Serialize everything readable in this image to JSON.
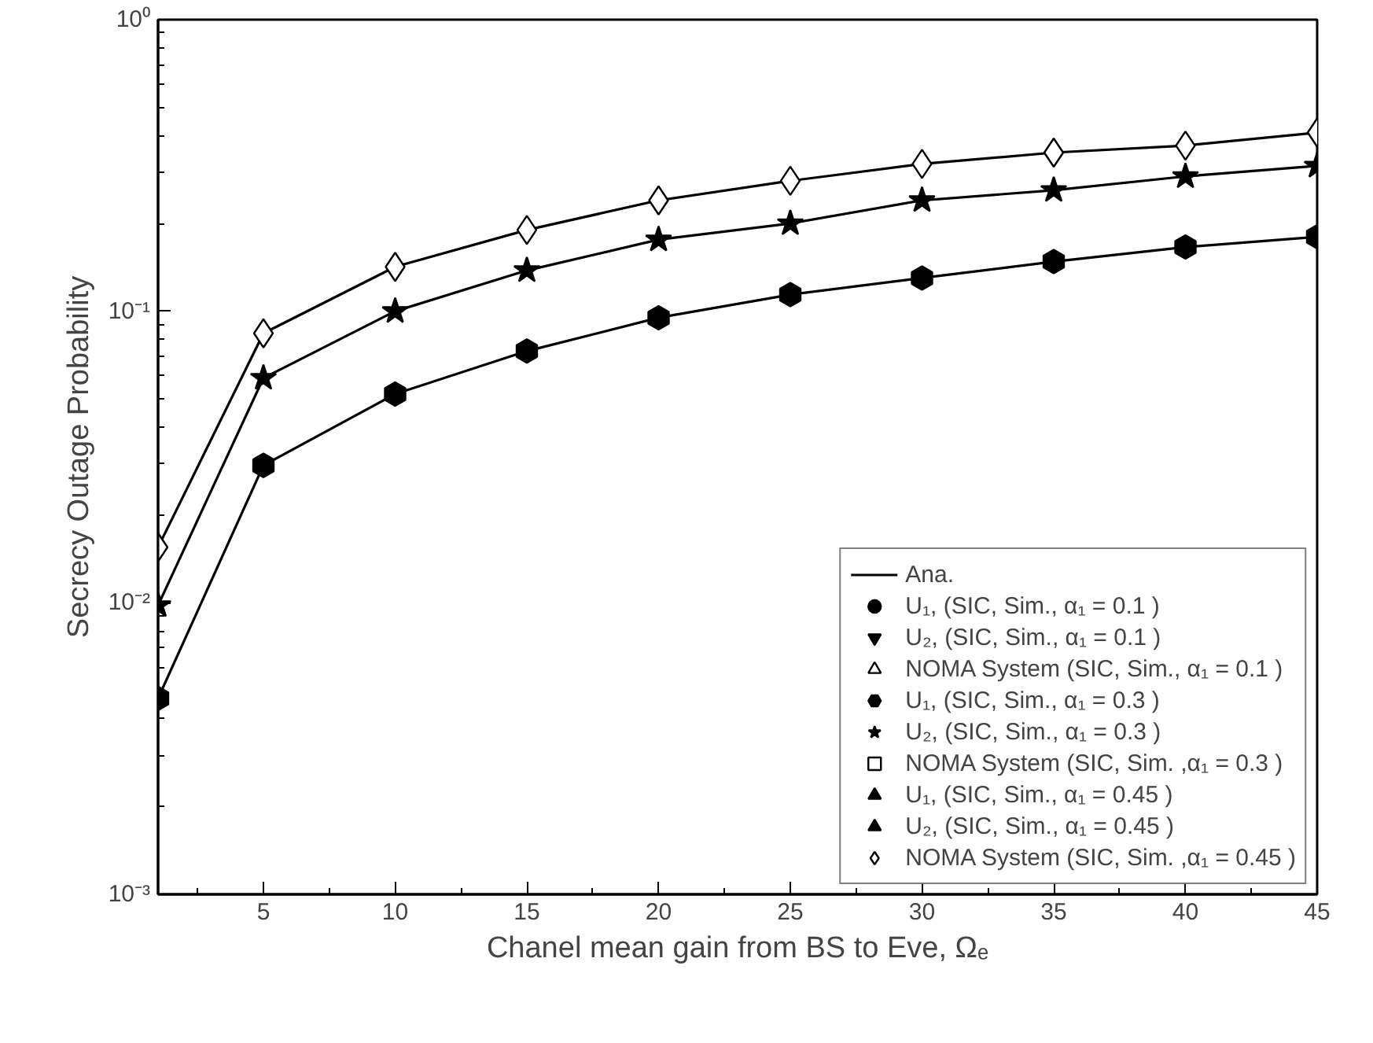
{
  "chart_data": {
    "type": "line",
    "xlabel": "Chanel mean gain from BS to Eve, Ωₑ",
    "ylabel": "Secrecy Outage Probability",
    "x": [
      1,
      5,
      10,
      15,
      20,
      25,
      30,
      35,
      40,
      45
    ],
    "xlim": [
      1,
      45
    ],
    "xticks": [
      5,
      10,
      15,
      20,
      25,
      30,
      35,
      40,
      45
    ],
    "ylim": [
      0.001,
      1
    ],
    "log": "y",
    "yticks": [
      {
        "value": 0.001,
        "label": "10⁻³"
      },
      {
        "value": 0.01,
        "label": "10⁻²"
      },
      {
        "value": 0.1,
        "label": "10⁻¹"
      },
      {
        "value": 1,
        "label": "10⁰"
      }
    ],
    "grid": false,
    "legend": "bottom right",
    "series": [
      {
        "name": "Ana.",
        "color": "#000000",
        "marker": "none",
        "values": [
          0.0155,
          0.084,
          0.142,
          0.19,
          0.24,
          0.28,
          0.32,
          0.35,
          0.37,
          0.41
        ]
      },
      {
        "color": "#000000",
        "marker": "none",
        "values": [
          0.0098,
          0.059,
          0.1,
          0.138,
          0.176,
          0.2,
          0.24,
          0.26,
          0.29,
          0.315
        ]
      },
      {
        "color": "#000000",
        "marker": "none",
        "values": [
          0.0047,
          0.0296,
          0.052,
          0.073,
          0.095,
          0.114,
          0.13,
          0.148,
          0.166,
          0.18
        ]
      },
      {
        "name": "U₁, (SIC, Sim., α₁ = 0.1 )",
        "type": "scatter",
        "color": "#000000",
        "marker": "circle",
        "values": [
          null,
          null,
          null,
          null,
          null,
          null,
          null,
          null,
          null,
          null
        ]
      },
      {
        "name": "U₂, (SIC, Sim., α₁ = 0.1 )",
        "type": "scatter",
        "color": "#000000",
        "values": [
          null,
          null,
          null,
          null,
          null,
          null,
          null,
          null,
          null,
          null
        ]
      },
      {
        "name": "NOMA System (SIC, Sim., α₁ = 0.1 )",
        "type": "scatter",
        "color": "#000000",
        "values": [
          null,
          null,
          null,
          null,
          null,
          null,
          null,
          null,
          null,
          null
        ]
      },
      {
        "name": "U₁, (SIC, Sim., α₁ = 0.3 )",
        "type": "scatter",
        "color": "#000000",
        "values": [
          0.0047,
          0.0296,
          0.052,
          0.073,
          0.095,
          0.114,
          0.13,
          0.148,
          0.166,
          0.18
        ]
      },
      {
        "name": "U₂, (SIC, Sim., α₁ = 0.3 )",
        "type": "scatter",
        "color": "#000000",
        "marker": "star",
        "values": [
          0.0098,
          0.059,
          0.1,
          0.138,
          0.176,
          0.2,
          0.24,
          0.26,
          0.29,
          0.315
        ]
      },
      {
        "name": "NOMA System (SIC, Sim. ,α₁ = 0.3 )",
        "type": "scatter",
        "color": "#000000",
        "marker": "square",
        "values": [
          null,
          null,
          null,
          null,
          null,
          null,
          null,
          null,
          null,
          null
        ]
      },
      {
        "name": "U₁, (SIC, Sim., α₁ = 0.45 )",
        "type": "scatter",
        "color": "#000000",
        "marker": "triangle",
        "values": [
          null,
          null,
          null,
          null,
          null,
          null,
          null,
          null,
          null,
          null
        ]
      },
      {
        "name": "U₂, (SIC, Sim., α₁ = 0.45 )",
        "type": "scatter",
        "color": "#000000",
        "values": [
          null,
          null,
          null,
          null,
          null,
          null,
          null,
          null,
          null,
          null
        ]
      },
      {
        "name": "NOMA System (SIC, Sim. ,α₁ = 0.45 )",
        "type": "scatter",
        "color": "#000000",
        "marker": "diamond",
        "values": [
          0.0155,
          0.084,
          0.142,
          0.19,
          0.24,
          0.28,
          0.32,
          0.35,
          0.37,
          0.41
        ]
      }
    ]
  }
}
